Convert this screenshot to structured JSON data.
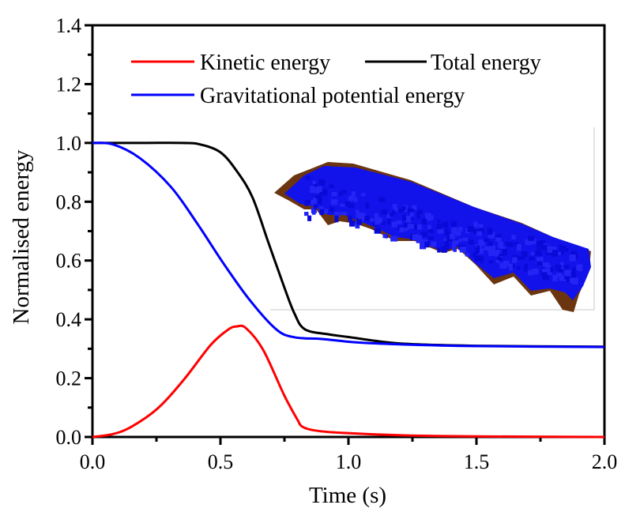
{
  "chart_data": {
    "type": "line",
    "title": "",
    "xlabel": "Time (s)",
    "ylabel": "Normalised energy",
    "xlim": [
      0,
      2.0
    ],
    "ylim": [
      0,
      1.4
    ],
    "xticks": [
      "0.0",
      "0.5",
      "1.0",
      "1.5",
      "2.0"
    ],
    "yticks": [
      "0.0",
      "0.2",
      "0.4",
      "0.6",
      "0.8",
      "1.0",
      "1.2",
      "1.4"
    ],
    "grid": false,
    "legend_position": "top",
    "series": [
      {
        "name": "Kinetic energy",
        "color": "#ff0000",
        "x": [
          0,
          0.08,
          0.153,
          0.256,
          0.358,
          0.462,
          0.53,
          0.564,
          0.6,
          0.667,
          0.749,
          0.8,
          0.82,
          0.87,
          0.974,
          1.2,
          1.5,
          2.0
        ],
        "y": [
          0,
          0.01,
          0.035,
          0.098,
          0.196,
          0.313,
          0.365,
          0.376,
          0.37,
          0.296,
          0.142,
          0.06,
          0.035,
          0.022,
          0.014,
          0.006,
          0.002,
          0.0
        ]
      },
      {
        "name": "Total energy",
        "color": "#000000",
        "x": [
          0,
          0.2,
          0.35,
          0.42,
          0.5,
          0.564,
          0.625,
          0.687,
          0.749,
          0.789,
          0.83,
          0.923,
          1.0,
          1.2,
          1.5,
          2.0
        ],
        "y": [
          1.0,
          1.0,
          1.0,
          0.995,
          0.968,
          0.904,
          0.815,
          0.662,
          0.51,
          0.42,
          0.366,
          0.349,
          0.34,
          0.318,
          0.31,
          0.307
        ]
      },
      {
        "name": "Gravitational potential energy",
        "color": "#0000ff",
        "x": [
          0,
          0.08,
          0.184,
          0.307,
          0.41,
          0.512,
          0.615,
          0.718,
          0.789,
          0.9,
          1.025,
          1.2,
          1.5,
          2.0
        ],
        "y": [
          1.0,
          0.995,
          0.949,
          0.85,
          0.725,
          0.59,
          0.465,
          0.366,
          0.339,
          0.333,
          0.322,
          0.315,
          0.309,
          0.306
        ]
      }
    ]
  },
  "inset": {
    "description_colors": {
      "particles": "#1010ee",
      "base": "#6b3510"
    }
  }
}
